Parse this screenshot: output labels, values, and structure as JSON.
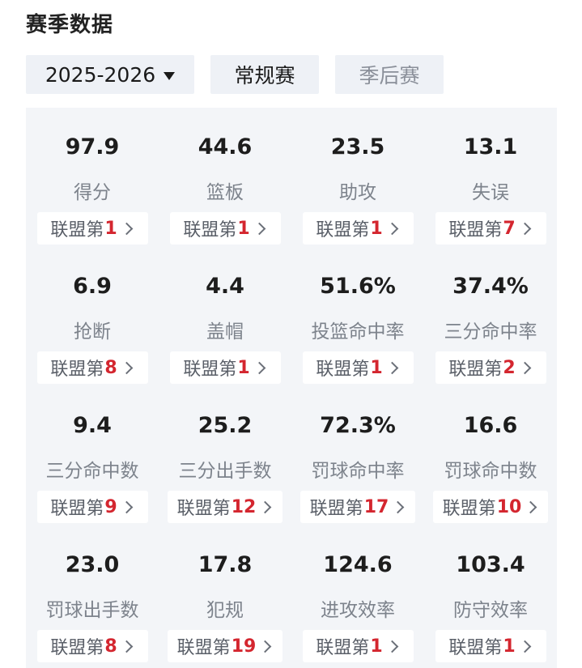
{
  "page": {
    "title": "赛季数据"
  },
  "filters": {
    "season": "2025-2026",
    "regular": "常规赛",
    "playoff": "季后赛"
  },
  "stats": [
    {
      "value": "97.9",
      "label": "得分",
      "rank_prefix": "联盟第",
      "rank": "1"
    },
    {
      "value": "44.6",
      "label": "篮板",
      "rank_prefix": "联盟第",
      "rank": "1"
    },
    {
      "value": "23.5",
      "label": "助攻",
      "rank_prefix": "联盟第",
      "rank": "1"
    },
    {
      "value": "13.1",
      "label": "失误",
      "rank_prefix": "联盟第",
      "rank": "7"
    },
    {
      "value": "6.9",
      "label": "抢断",
      "rank_prefix": "联盟第",
      "rank": "8"
    },
    {
      "value": "4.4",
      "label": "盖帽",
      "rank_prefix": "联盟第",
      "rank": "1"
    },
    {
      "value": "51.6%",
      "label": "投篮命中率",
      "rank_prefix": "联盟第",
      "rank": "1"
    },
    {
      "value": "37.4%",
      "label": "三分命中率",
      "rank_prefix": "联盟第",
      "rank": "2"
    },
    {
      "value": "9.4",
      "label": "三分命中数",
      "rank_prefix": "联盟第",
      "rank": "9"
    },
    {
      "value": "25.2",
      "label": "三分出手数",
      "rank_prefix": "联盟第",
      "rank": "12"
    },
    {
      "value": "72.3%",
      "label": "罚球命中率",
      "rank_prefix": "联盟第",
      "rank": "17"
    },
    {
      "value": "16.6",
      "label": "罚球命中数",
      "rank_prefix": "联盟第",
      "rank": "10"
    },
    {
      "value": "23.0",
      "label": "罚球出手数",
      "rank_prefix": "联盟第",
      "rank": "8"
    },
    {
      "value": "17.8",
      "label": "犯规",
      "rank_prefix": "联盟第",
      "rank": "19"
    },
    {
      "value": "124.6",
      "label": "进攻效率",
      "rank_prefix": "联盟第",
      "rank": "1"
    },
    {
      "value": "103.4",
      "label": "防守效率",
      "rank_prefix": "联盟第",
      "rank": "1"
    }
  ]
}
